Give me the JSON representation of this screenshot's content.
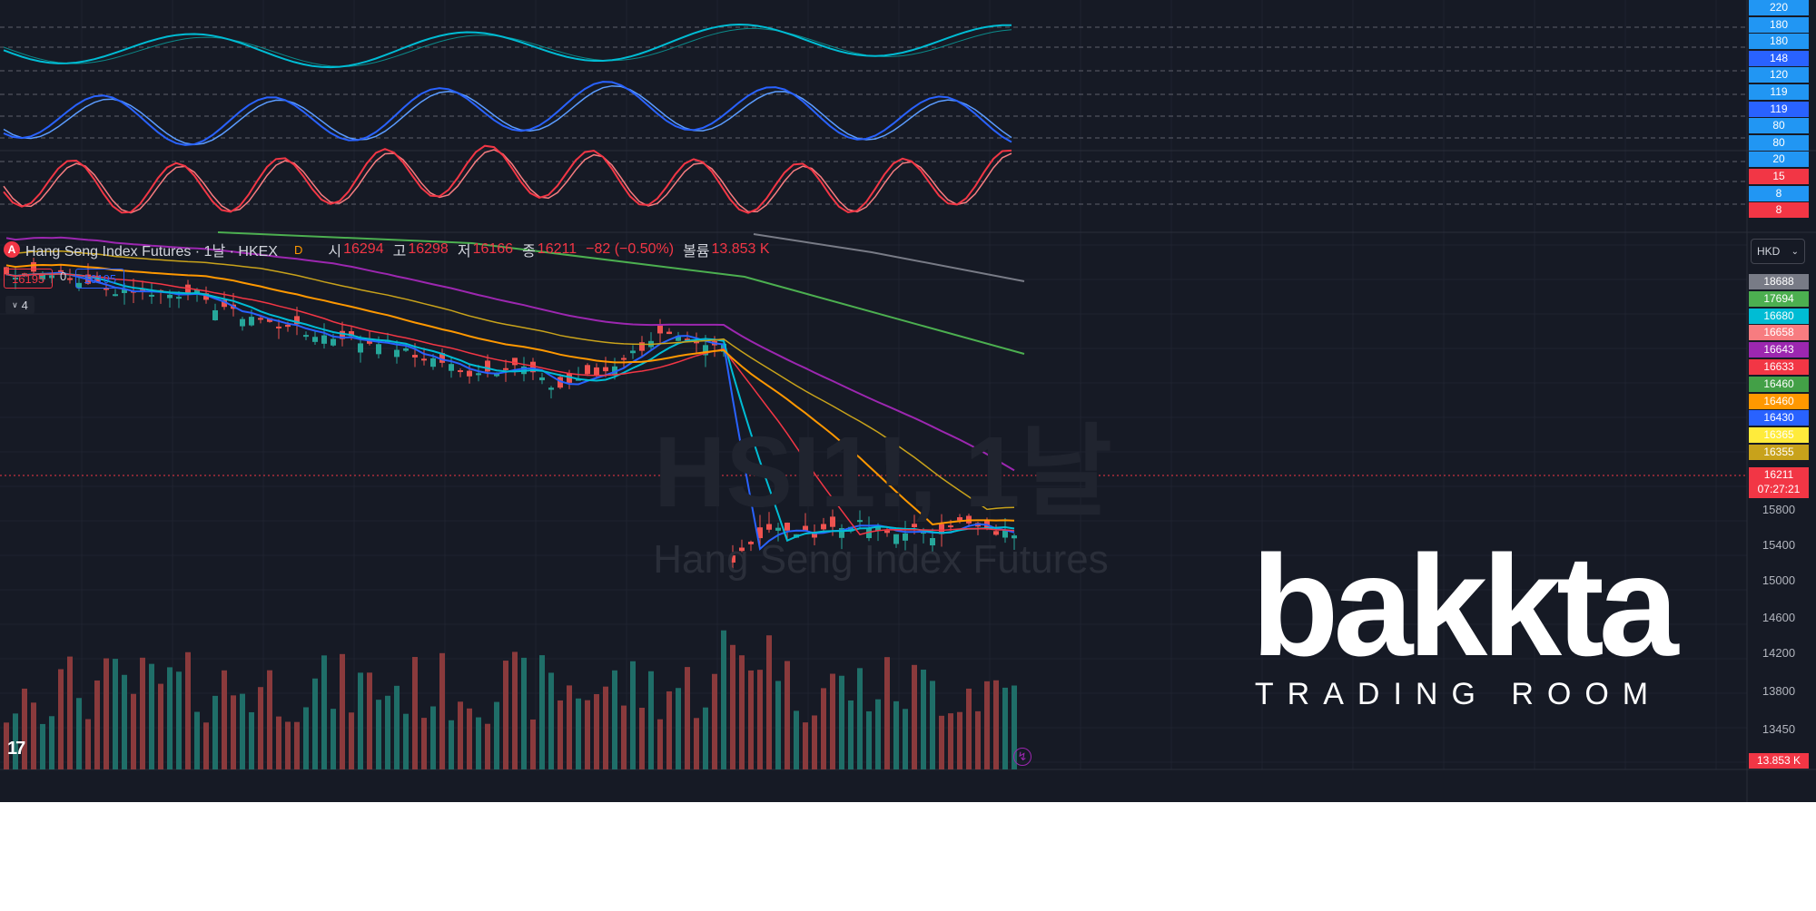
{
  "legend": {
    "badge": "A",
    "title": "Hang Seng Index Futures · 1날 · HKEX",
    "dot": "D",
    "open_key": "시",
    "open_val": "16294",
    "high_key": "고",
    "high_val": "16298",
    "low_key": "저",
    "low_val": "16166",
    "close_key": "종",
    "close_val": "16211",
    "change": "−82 (−0.50%)",
    "volume_key": "볼륨",
    "volume_val": "13.853 K"
  },
  "price_boxes": {
    "sell": "16195",
    "spread": "0",
    "buy": "16195"
  },
  "collapse_label": "4",
  "currency": "HKD",
  "watermark": {
    "symbol": "HSI1!, 1날",
    "title": "Hang Seng Index Futures"
  },
  "brand": {
    "word": "bakkta",
    "sub": "TRADING ROOM"
  },
  "oscillator_axis": [
    {
      "text": "220",
      "color": "#2196f3"
    },
    {
      "text": "180",
      "color": "#2196f3"
    },
    {
      "text": "180",
      "color": "#2196f3"
    },
    {
      "text": "148",
      "color": "#2962ff"
    },
    {
      "text": "120",
      "color": "#2196f3"
    },
    {
      "text": "119",
      "color": "#2196f3"
    },
    {
      "text": "119",
      "color": "#2962ff"
    },
    {
      "text": "80",
      "color": "#2196f3"
    },
    {
      "text": "80",
      "color": "#2196f3"
    },
    {
      "text": "20",
      "color": "#2196f3"
    },
    {
      "text": "15",
      "color": "#f23645"
    },
    {
      "text": "8",
      "color": "#2196f3"
    },
    {
      "text": "8",
      "color": "#f23645"
    }
  ],
  "ma_axis": [
    {
      "text": "18688",
      "color": "#787b86"
    },
    {
      "text": "17694",
      "color": "#4caf50"
    },
    {
      "text": "16680",
      "color": "#00bcd4"
    },
    {
      "text": "16658",
      "color": "#f77c80"
    },
    {
      "text": "16643",
      "color": "#9c27b0"
    },
    {
      "text": "16633",
      "color": "#f23645"
    },
    {
      "text": "16460",
      "color": "#43a047"
    },
    {
      "text": "16460",
      "color": "#ff9800"
    },
    {
      "text": "16430",
      "color": "#2962ff"
    },
    {
      "text": "16365",
      "color": "#ffeb3b"
    },
    {
      "text": "16355",
      "color": "#c8a21b"
    }
  ],
  "last_price": {
    "value": "16211",
    "countdown": "07:27:21",
    "color": "#f23645"
  },
  "price_ticks": [
    "15800",
    "15400",
    "15000",
    "14600",
    "14200",
    "13800",
    "13450"
  ],
  "volume_label": "13.853 K",
  "colors": {
    "background": "#161a25",
    "up": "#26a69a",
    "down": "#ef5350"
  }
}
